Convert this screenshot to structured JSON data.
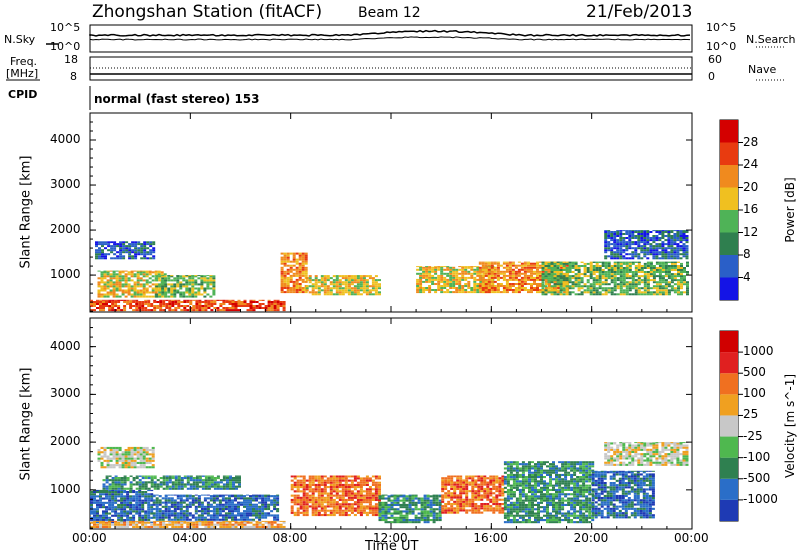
{
  "header": {
    "station": "Zhongshan Station (fitACF)",
    "beam": "Beam 12",
    "date": "21/Feb/2013"
  },
  "noise_panel": {
    "left_label": "N.Sky",
    "right_label": "N.Search",
    "left_ticks": [
      "10^5",
      "10^0"
    ],
    "right_ticks": [
      "10^5",
      "10^0"
    ]
  },
  "freq_panel": {
    "left_label_1": "Freq.",
    "left_label_2": "[MHz]",
    "right_label": "Nave",
    "left_ticks": [
      "18",
      "8"
    ],
    "right_ticks": [
      "60",
      "0"
    ]
  },
  "cpid": {
    "label": "CPID",
    "mode_text": "normal (fast stereo) 153"
  },
  "x_axis": {
    "label": "Time UT",
    "ticks": [
      "00:00",
      "04:00",
      "08:00",
      "12:00",
      "16:00",
      "20:00",
      "00:00"
    ]
  },
  "chart_data": [
    {
      "type": "heatmap",
      "title": "",
      "quantity": "Power",
      "xlabel": "Time UT",
      "ylabel": "Slant Range [km]",
      "colorbar_label": "Power [dB]",
      "colorbar_ticks": [
        "4",
        "8",
        "12",
        "16",
        "20",
        "24",
        "28"
      ],
      "colors": [
        "#1414e6",
        "#2a5fc8",
        "#2f7f4f",
        "#4fb357",
        "#f0c020",
        "#f08a1e",
        "#e83b10",
        "#d40000"
      ],
      "xlim_hours": [
        0,
        24
      ],
      "ylim_km": [
        180,
        4600
      ],
      "yticks_km": [
        1000,
        2000,
        3000,
        4000
      ],
      "echo_bands": [
        {
          "t_start": 0.0,
          "t_end": 7.8,
          "range_low_km": 200,
          "range_high_km": 450,
          "level": 6
        },
        {
          "t_start": 0.3,
          "t_end": 3.0,
          "range_low_km": 500,
          "range_high_km": 1100,
          "level": 4
        },
        {
          "t_start": 0.2,
          "t_end": 2.6,
          "range_low_km": 1350,
          "range_high_km": 1750,
          "level": 1
        },
        {
          "t_start": 2.6,
          "t_end": 5.0,
          "range_low_km": 500,
          "range_high_km": 1000,
          "level": 3
        },
        {
          "t_start": 7.6,
          "t_end": 8.6,
          "range_low_km": 600,
          "range_high_km": 1500,
          "level": 5
        },
        {
          "t_start": 8.6,
          "t_end": 11.5,
          "range_low_km": 550,
          "range_high_km": 1000,
          "level": 4
        },
        {
          "t_start": 13.0,
          "t_end": 16.0,
          "range_low_km": 600,
          "range_high_km": 1200,
          "level": 4
        },
        {
          "t_start": 15.5,
          "t_end": 19.0,
          "range_low_km": 600,
          "range_high_km": 1300,
          "level": 5
        },
        {
          "t_start": 18.0,
          "t_end": 23.8,
          "range_low_km": 550,
          "range_high_km": 1300,
          "level": 3
        },
        {
          "t_start": 20.5,
          "t_end": 23.8,
          "range_low_km": 1350,
          "range_high_km": 2000,
          "level": 1
        }
      ]
    },
    {
      "type": "heatmap",
      "title": "",
      "quantity": "Velocity",
      "xlabel": "Time UT",
      "ylabel": "Slant Range [km]",
      "colorbar_label": "Velocity [m s^-1]",
      "colorbar_ticks": [
        "1000",
        "500",
        "100",
        "25",
        "-25",
        "-100",
        "-500",
        "-1000"
      ],
      "colors": [
        "#1e3ab4",
        "#2a6ec8",
        "#2f8050",
        "#4fb84f",
        "#c8c8c8",
        "#f0a020",
        "#f07020",
        "#e02020",
        "#d00000"
      ],
      "xlim_hours": [
        0,
        24
      ],
      "ylim_km": [
        180,
        4600
      ],
      "yticks_km": [
        1000,
        2000,
        3000,
        4000
      ],
      "echo_bands": [
        {
          "t_start": 0.0,
          "t_end": 2.5,
          "range_low_km": 300,
          "range_high_km": 1000,
          "level": 1
        },
        {
          "t_start": 0.5,
          "t_end": 6.0,
          "range_low_km": 1000,
          "range_high_km": 1300,
          "level": 2
        },
        {
          "t_start": 0.0,
          "t_end": 7.8,
          "range_low_km": 200,
          "range_high_km": 350,
          "level": 5
        },
        {
          "t_start": 2.5,
          "t_end": 7.5,
          "range_low_km": 350,
          "range_high_km": 900,
          "level": 1
        },
        {
          "t_start": 8.0,
          "t_end": 11.5,
          "range_low_km": 450,
          "range_high_km": 1300,
          "level": 6
        },
        {
          "t_start": 11.5,
          "t_end": 14.0,
          "range_low_km": 300,
          "range_high_km": 900,
          "level": 2
        },
        {
          "t_start": 14.0,
          "t_end": 16.5,
          "range_low_km": 500,
          "range_high_km": 1300,
          "level": 6
        },
        {
          "t_start": 16.5,
          "t_end": 20.0,
          "range_low_km": 300,
          "range_high_km": 1600,
          "level": 2
        },
        {
          "t_start": 20.0,
          "t_end": 22.5,
          "range_low_km": 400,
          "range_high_km": 1400,
          "level": 1
        },
        {
          "t_start": 20.5,
          "t_end": 23.8,
          "range_low_km": 1500,
          "range_high_km": 2000,
          "level": 4
        },
        {
          "t_start": 0.3,
          "t_end": 2.5,
          "range_low_km": 1450,
          "range_high_km": 1900,
          "level": 4
        }
      ]
    }
  ]
}
